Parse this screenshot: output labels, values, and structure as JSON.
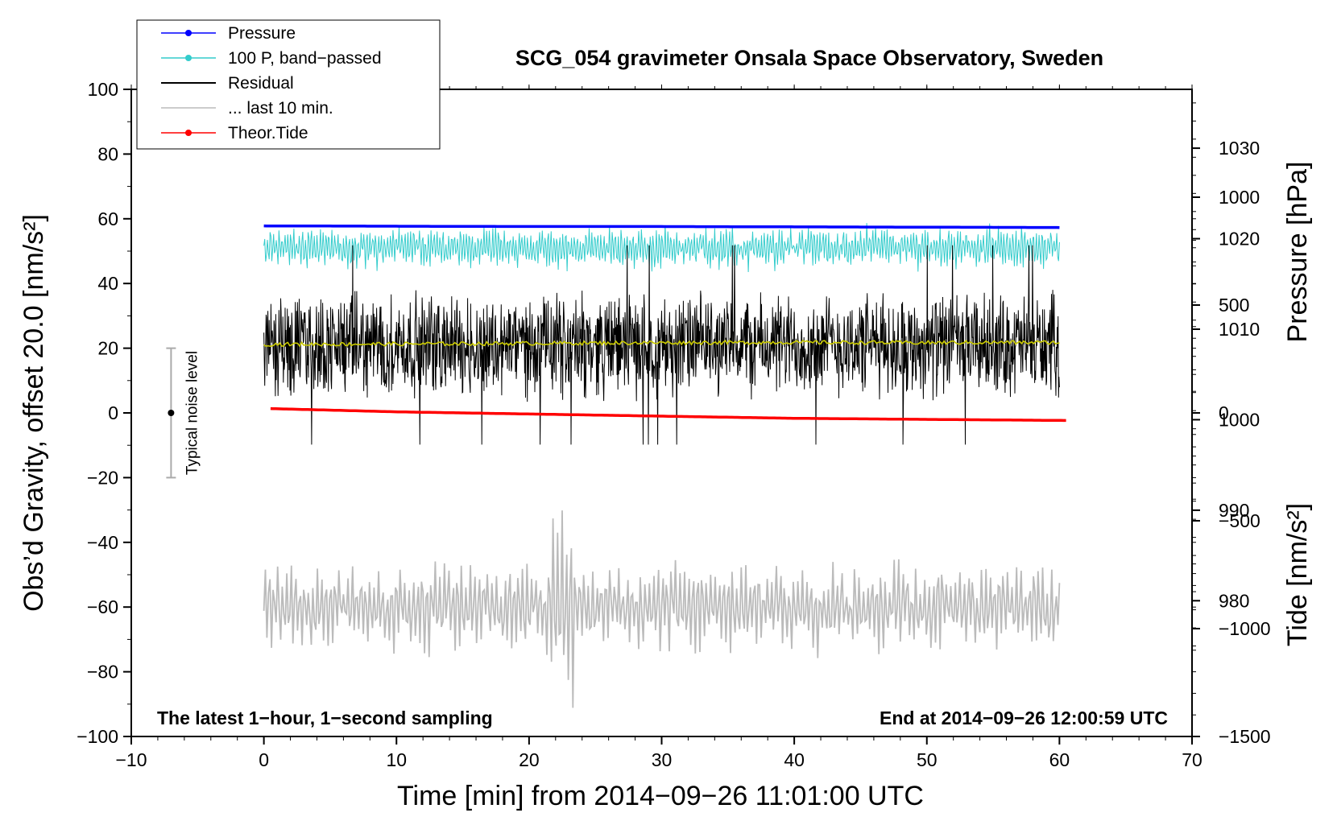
{
  "chart_data": {
    "type": "line",
    "title": "SCG_054 gravimeter Onsala Space Observatory, Sweden",
    "xlabel": "Time [min] from 2014−09−26 11:01:00 UTC",
    "ylabel_left": "Obs’d Gravity, offset 20.0 [nm/s²]",
    "ylabel_pressure": "Pressure [hPa]",
    "ylabel_tide": "Tide [nm/s²]",
    "xlim": [
      -10,
      70
    ],
    "ylim_left": [
      -100,
      100
    ],
    "ylim_pressure": [
      965,
      1036.5
    ],
    "ylim_tide": [
      -1500,
      1500
    ],
    "x_ticks": [
      "−10",
      "0",
      "10",
      "20",
      "30",
      "40",
      "50",
      "60",
      "70"
    ],
    "y_ticks_left": [
      "100",
      "80",
      "60",
      "40",
      "20",
      "0",
      "−20",
      "−40",
      "−60",
      "−80",
      "−100"
    ],
    "y_ticks_pressure": [
      "1030",
      "1020",
      "1010",
      "1000",
      "990",
      "980"
    ],
    "y_ticks_tide": [
      "1000",
      "500",
      "0",
      "−500",
      "−1000",
      "−1500"
    ],
    "annotation_left": "The latest 1−hour, 1−second sampling",
    "annotation_right": "End at 2014−09−26 12:00:59 UTC",
    "noise_label": "Typical noise level",
    "noise_bar": {
      "x": -7,
      "center": 0,
      "low": -20,
      "high": 20
    },
    "legend": [
      {
        "label": "Pressure",
        "color": "#0000ff",
        "marker": true
      },
      {
        "label": "100 P, band−passed",
        "color": "#33cccc",
        "marker": true
      },
      {
        "label": "Residual",
        "color": "#000000",
        "marker": false
      },
      {
        "label": "... last 10 min.",
        "color": "#bbbbbb",
        "marker": false
      },
      {
        "label": "Theor.Tide",
        "color": "#ff0000",
        "marker": true
      }
    ],
    "series": [
      {
        "name": "Pressure",
        "axis": "left",
        "x": [
          0,
          10,
          20,
          30,
          40,
          50,
          60
        ],
        "values": [
          57.8,
          57.7,
          57.6,
          57.6,
          57.5,
          57.4,
          57.3
        ]
      },
      {
        "name": "100 P, band-passed",
        "axis": "left",
        "x_range": [
          0,
          60
        ],
        "mean": 51,
        "amplitude": 6
      },
      {
        "name": "Residual",
        "axis": "left",
        "x_range": [
          0,
          60
        ],
        "mean": 21,
        "amplitude": 14
      },
      {
        "name": "Residual smoothed",
        "axis": "left",
        "color": "#cccc00",
        "x": [
          0,
          10,
          20,
          30,
          40,
          50,
          60
        ],
        "values": [
          21.2,
          21.3,
          21.5,
          21.7,
          21.8,
          21.7,
          21.8
        ]
      },
      {
        "name": "... last 10 min.",
        "axis": "left",
        "x_range": [
          0,
          60
        ],
        "mean": -60,
        "amplitude": 14
      },
      {
        "name": "Theor.Tide",
        "axis": "tide",
        "x": [
          0.5,
          10,
          20,
          30,
          40,
          50,
          60.5
        ],
        "values": [
          20,
          5,
          -5,
          -15,
          -25,
          -30,
          -35
        ]
      }
    ]
  }
}
